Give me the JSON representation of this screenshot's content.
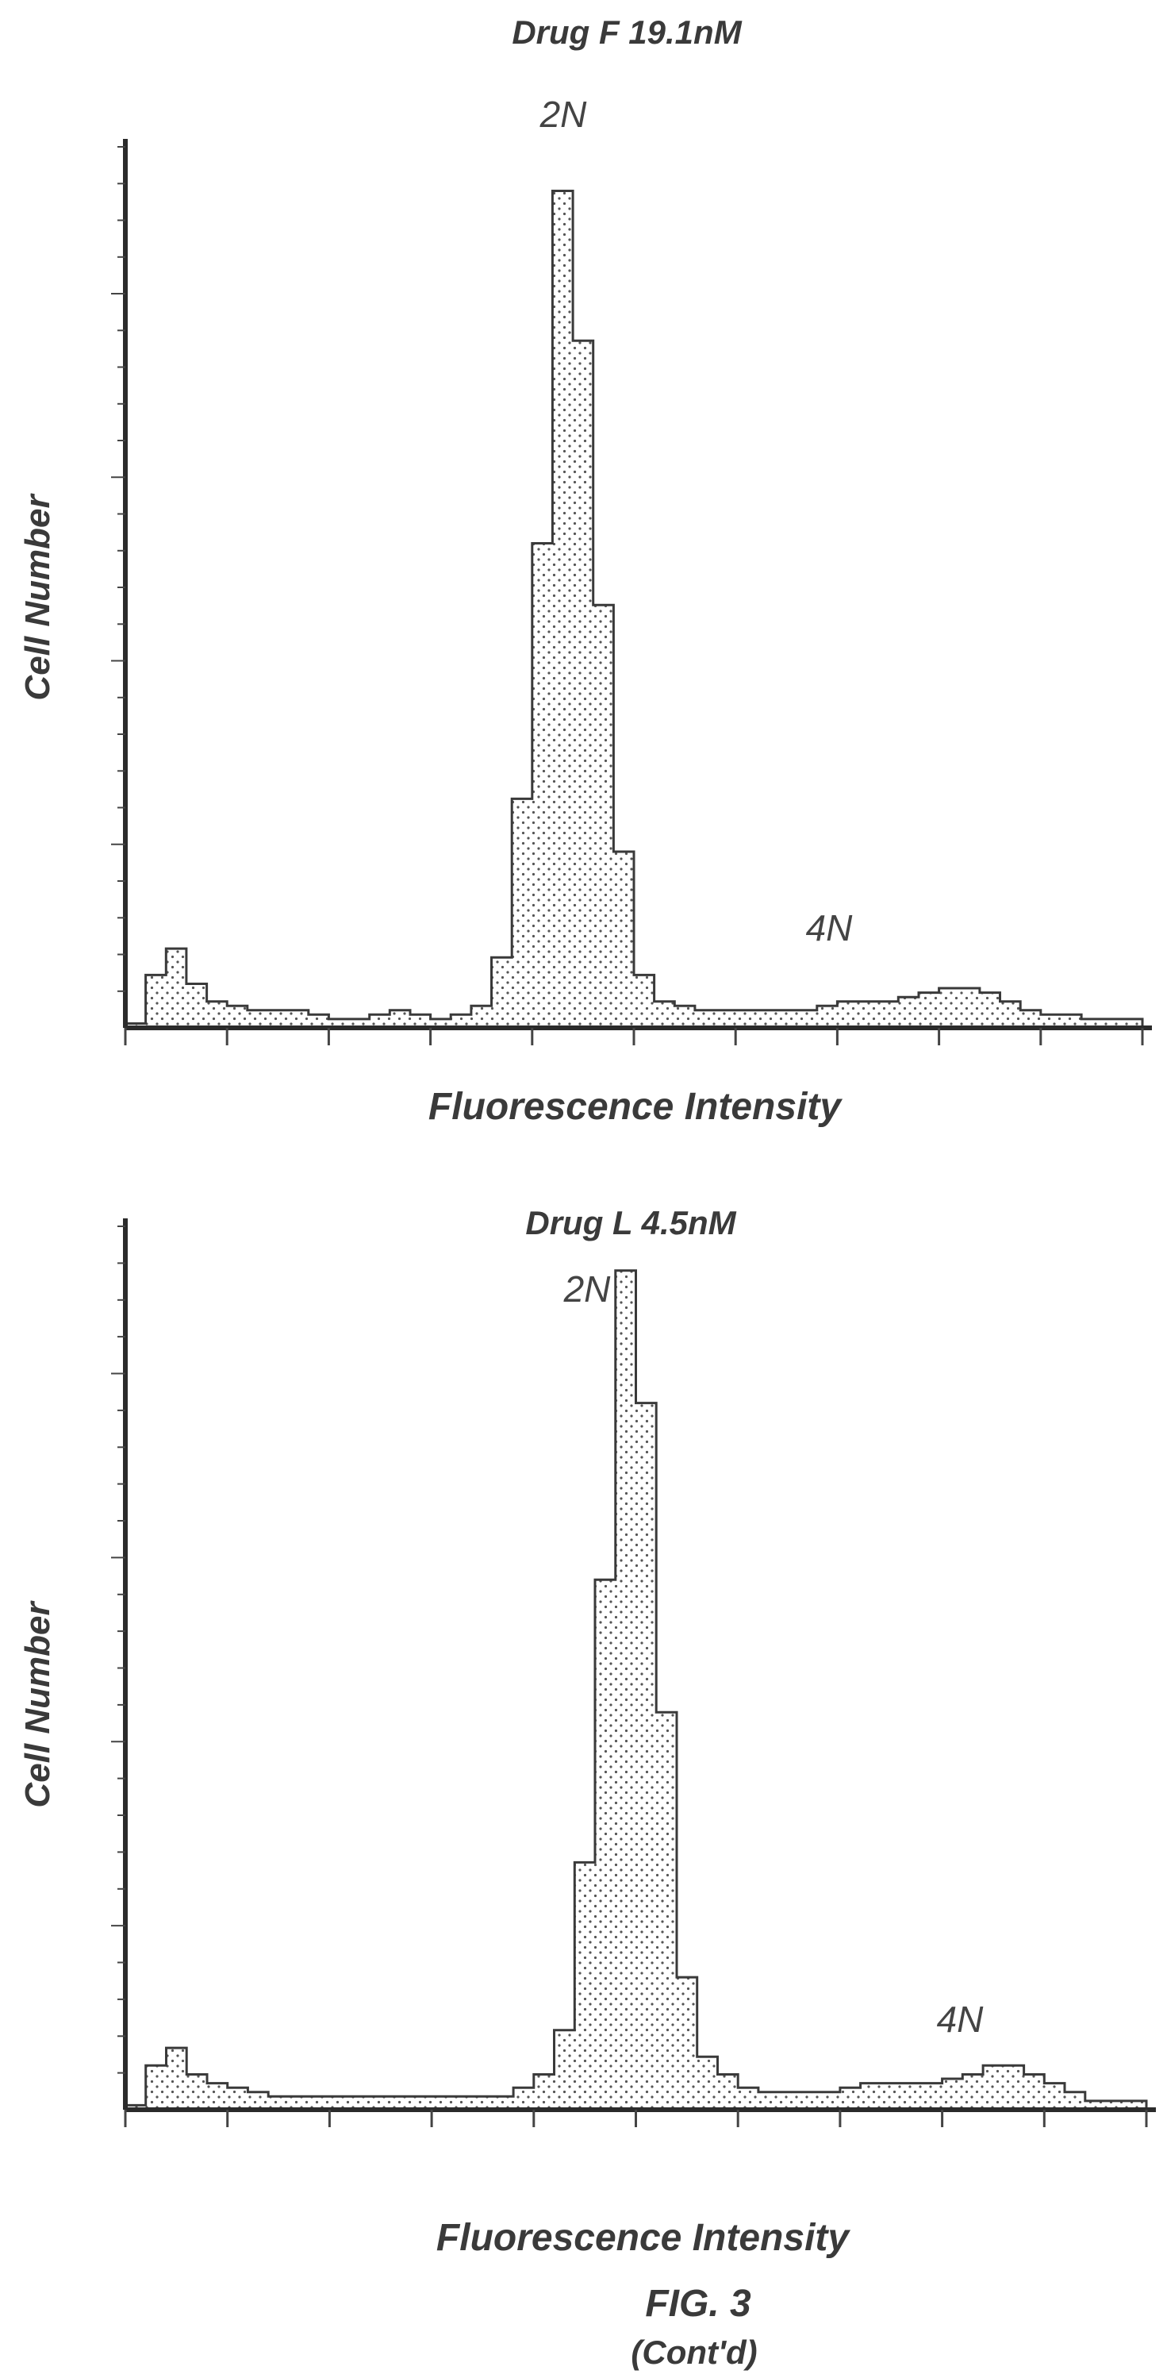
{
  "figure": {
    "label": "FIG. 3",
    "continued": "(Cont'd)"
  },
  "chart_data": [
    {
      "type": "area",
      "title": "Drug F 19.1nM",
      "xlabel": "Fluorescence Intensity",
      "ylabel": "Cell Number",
      "annotations": [
        "2N",
        "4N"
      ],
      "x": [
        0,
        2,
        4,
        6,
        8,
        10,
        12,
        14,
        16,
        18,
        20,
        22,
        24,
        26,
        28,
        30,
        32,
        34,
        36,
        38,
        40,
        42,
        44,
        46,
        48,
        50,
        52,
        54,
        56,
        58,
        60,
        62,
        64,
        66,
        68,
        70,
        72,
        74,
        76,
        78,
        80,
        82,
        84,
        86,
        88,
        90,
        92,
        94,
        96,
        98,
        100
      ],
      "y": [
        0.5,
        6,
        9,
        5,
        3,
        2.5,
        2,
        2,
        2,
        1.5,
        1,
        1,
        1.5,
        2,
        1.5,
        1,
        1.5,
        2.5,
        8,
        26,
        55,
        95,
        78,
        48,
        20,
        6,
        3,
        2.5,
        2,
        2,
        2,
        2,
        2,
        2,
        2.5,
        3,
        3,
        3,
        3.5,
        4,
        4.5,
        4.5,
        4,
        3,
        2,
        1.5,
        1.5,
        1,
        1,
        1,
        1
      ],
      "ylim": [
        0,
        100
      ],
      "xlim": [
        0,
        100
      ],
      "grid": false
    },
    {
      "type": "area",
      "title": "Drug L 4.5nM",
      "xlabel": "Fluorescence Intensity",
      "ylabel": "Cell Number",
      "annotations": [
        "2N",
        "4N"
      ],
      "x": [
        0,
        2,
        4,
        6,
        8,
        10,
        12,
        14,
        16,
        18,
        20,
        22,
        24,
        26,
        28,
        30,
        32,
        34,
        36,
        38,
        40,
        42,
        44,
        46,
        48,
        50,
        52,
        54,
        56,
        58,
        60,
        62,
        64,
        66,
        68,
        70,
        72,
        74,
        76,
        78,
        80,
        82,
        84,
        86,
        88,
        90,
        92,
        94,
        96,
        98,
        100
      ],
      "y": [
        0.5,
        5,
        7,
        4,
        3,
        2.5,
        2,
        1.5,
        1.5,
        1.5,
        1.5,
        1.5,
        1.5,
        1.5,
        1.5,
        1.5,
        1.5,
        1.5,
        1.5,
        2.5,
        4,
        9,
        28,
        60,
        95,
        80,
        45,
        15,
        6,
        4,
        2.5,
        2,
        2,
        2,
        2,
        2.5,
        3,
        3,
        3,
        3,
        3.5,
        4,
        5,
        5,
        4,
        3,
        2,
        1,
        1,
        1,
        1
      ],
      "ylim": [
        0,
        100
      ],
      "xlim": [
        0,
        100
      ],
      "grid": false
    }
  ]
}
